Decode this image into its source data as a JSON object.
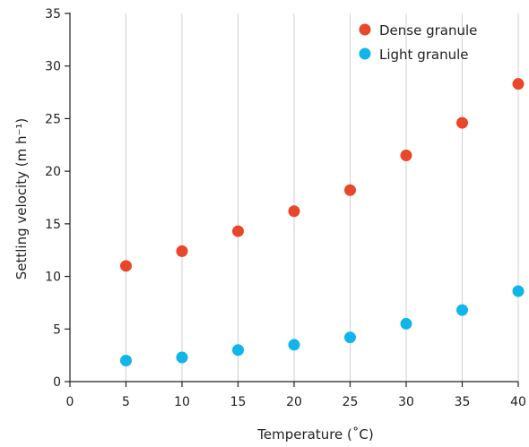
{
  "chart_data": {
    "type": "scatter",
    "xlabel": "Temperature (˚C)",
    "ylabel": "Settling velocity (m h⁻¹)",
    "xlim": [
      0,
      40
    ],
    "ylim": [
      0,
      35
    ],
    "x_ticks": [
      0,
      5,
      10,
      15,
      20,
      25,
      30,
      35,
      40
    ],
    "y_ticks": [
      0,
      5,
      10,
      15,
      20,
      25,
      30,
      35
    ],
    "grid": "vertical",
    "legend_position": "top-right",
    "series": [
      {
        "name": "Dense granule",
        "color": "#e8472a",
        "x": [
          5,
          10,
          15,
          20,
          25,
          30,
          35,
          40
        ],
        "y": [
          11.0,
          12.4,
          14.3,
          16.2,
          18.2,
          21.5,
          24.6,
          28.3
        ]
      },
      {
        "name": "Light granule",
        "color": "#12b5ea",
        "x": [
          5,
          10,
          15,
          20,
          25,
          30,
          35,
          40
        ],
        "y": [
          2.0,
          2.3,
          3.0,
          3.5,
          4.2,
          5.5,
          6.8,
          8.6
        ]
      }
    ]
  }
}
